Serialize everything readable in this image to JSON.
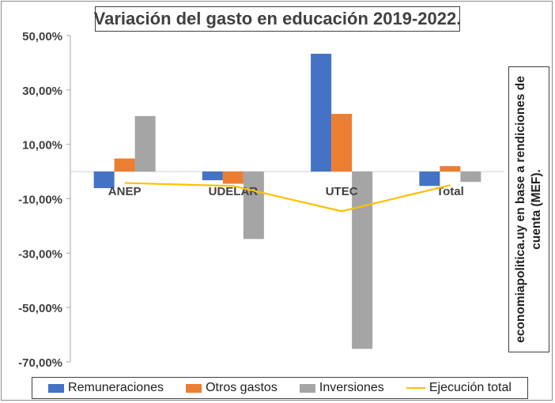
{
  "chart_data": {
    "type": "bar",
    "title": "Variación del gasto en educación 2019-2022.",
    "source_note": "economiapolitica.uy en base a rendiciones de cuenta (MEF).",
    "categories": [
      "ANEP",
      "UDELAR",
      "UTEC",
      "Total"
    ],
    "series": [
      {
        "name": "Remuneraciones",
        "color": "#4472C4",
        "values": [
          -6.1,
          -3.2,
          43.3,
          -5.3
        ]
      },
      {
        "name": "Otros gastos",
        "color": "#ED7D31",
        "values": [
          4.8,
          -4.5,
          21.2,
          2.0
        ]
      },
      {
        "name": "Inversiones",
        "color": "#A5A5A5",
        "values": [
          20.4,
          -24.8,
          -65.2,
          -3.8
        ]
      }
    ],
    "line_series": {
      "name": "Ejecución total",
      "color": "#FFC000",
      "values": [
        -4.2,
        -5.3,
        -14.6,
        -5.0
      ]
    },
    "ylim": [
      -70,
      50
    ],
    "yticks": [
      50,
      30,
      10,
      -10,
      -30,
      -50,
      -70
    ],
    "ytick_labels": [
      "50,00%",
      "30,00%",
      "10,00%",
      "-10,00%",
      "-30,00%",
      "-50,00%",
      "-70,00%"
    ],
    "grid": false,
    "legend_position": "bottom"
  }
}
